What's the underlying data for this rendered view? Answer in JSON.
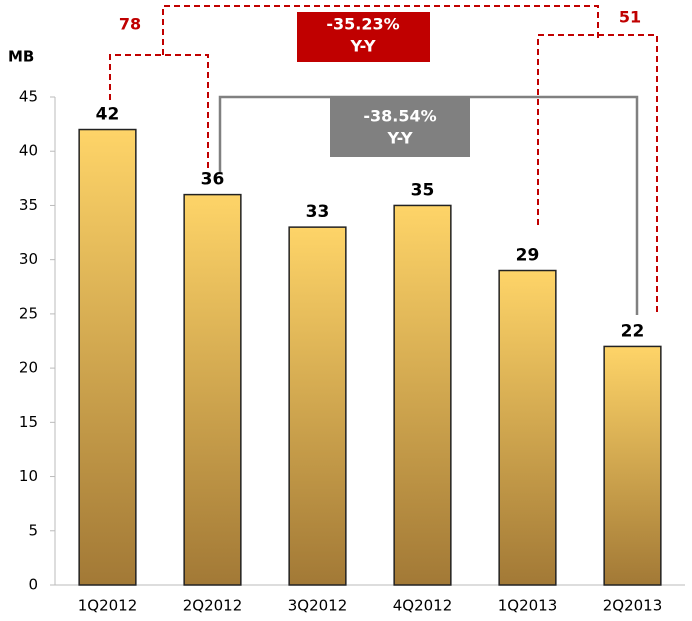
{
  "chart_data": {
    "type": "bar",
    "y_label": "MB",
    "categories": [
      "1Q2012",
      "2Q2012",
      "3Q2012",
      "4Q2012",
      "1Q2013",
      "2Q2013"
    ],
    "values": [
      42,
      36,
      33,
      35,
      29,
      22
    ],
    "color": "#d9a94a",
    "ylim": [
      0,
      45
    ],
    "yticks": [
      0,
      5,
      10,
      15,
      20,
      25,
      30,
      35,
      40,
      45
    ],
    "grid": false,
    "annotations": [
      "78",
      "-35.23%",
      "Y-Y",
      "-38.54%",
      "Y-Y",
      "51"
    ]
  }
}
